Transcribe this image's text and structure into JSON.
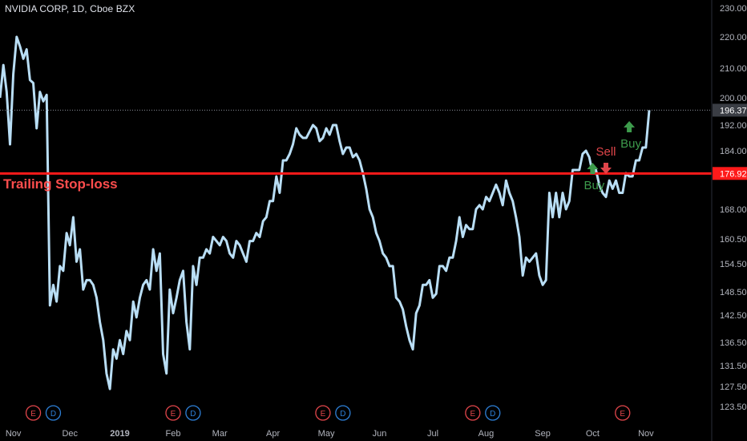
{
  "header": {
    "title": "NVIDIA CORP, 1D, Cboe BZX"
  },
  "colors": {
    "background": "#000000",
    "price_line": "#b9def5",
    "stop_line": "#ff1a1a",
    "stop_label_text": "#ff4d4d",
    "buy": "#3d9b4c",
    "sell": "#e0454a",
    "axis_text": "#b2b5be",
    "event_earnings": "#e0454a",
    "event_dividend": "#2d7fd6"
  },
  "annotations": {
    "stop_loss_label": "Trailing Stop-loss",
    "buy_label": "Buy",
    "sell_label": "Sell"
  },
  "chart_data": {
    "type": "line",
    "title": "NVIDIA CORP, 1D, Cboe BZX",
    "xlabel": "",
    "ylabel": "",
    "ylim": [
      120.5,
      231.5
    ],
    "grid": false,
    "y_ticks": [
      "230.00",
      "220.00",
      "210.00",
      "200.00",
      "192.00",
      "184.00",
      "176.00",
      "168.00",
      "160.50",
      "154.50",
      "148.50",
      "142.50",
      "136.50",
      "131.50",
      "127.50",
      "123.50"
    ],
    "y_tick_values": [
      230,
      220,
      210,
      200,
      192,
      184,
      176,
      168,
      160.5,
      154.5,
      148.5,
      142.5,
      136.5,
      131.5,
      127.5,
      123.5
    ],
    "x_ticks": [
      "Nov",
      "Dec",
      "2019",
      "Feb",
      "Mar",
      "Apr",
      "May",
      "Jun",
      "Jul",
      "Aug",
      "Sep",
      "Oct",
      "Nov"
    ],
    "x_tick_index": [
      4,
      21,
      36,
      52,
      66,
      82,
      98,
      114,
      130,
      146,
      163,
      178,
      194
    ],
    "last_price": 196.37,
    "last_price_label": "196.37",
    "stop_level": 176.92,
    "stop_level_label": "176.92",
    "series": [
      {
        "values": [
          200,
          211,
          202,
          186,
          208,
          220,
          217,
          213,
          216,
          206,
          205,
          191,
          202,
          199,
          201,
          145,
          150,
          146,
          154,
          153,
          162,
          159,
          166,
          155,
          158,
          149,
          151,
          151,
          150,
          147,
          141,
          137,
          130,
          127,
          135,
          133,
          137,
          134,
          139,
          137,
          146,
          142,
          147,
          150,
          151,
          149,
          158,
          153,
          157,
          134,
          130,
          149,
          143,
          147,
          151,
          153,
          141,
          135,
          154,
          150,
          156,
          156,
          158,
          157,
          161,
          160,
          159,
          161,
          160,
          157,
          156,
          160,
          159,
          157,
          155,
          160,
          160,
          162,
          161,
          165,
          166,
          170,
          170,
          176,
          172,
          181,
          181,
          183,
          186,
          191,
          189,
          188,
          188,
          190,
          192,
          191,
          187,
          188,
          191,
          189,
          192,
          192,
          187,
          183,
          185,
          185,
          182,
          183,
          181,
          177,
          173,
          168,
          166,
          162,
          160,
          157,
          156,
          154,
          154,
          147,
          146,
          144,
          140,
          137,
          135,
          143,
          145,
          150,
          150,
          151,
          147,
          148,
          154,
          154,
          153,
          156,
          156,
          160,
          166,
          161,
          164,
          163,
          163,
          168,
          169,
          168,
          171,
          170,
          172,
          174,
          172,
          169,
          175,
          172,
          170,
          166,
          161,
          152,
          156,
          155,
          156,
          157,
          152,
          150,
          151,
          172,
          166,
          172,
          166,
          172,
          168,
          170,
          178,
          178,
          178,
          183,
          184,
          182,
          177,
          178,
          174,
          172,
          171,
          175,
          173,
          175,
          172,
          172,
          177,
          176,
          176,
          181,
          181,
          185,
          185,
          196.37
        ]
      }
    ],
    "signals": [
      {
        "type": "Buy",
        "index": 178,
        "price": 178
      },
      {
        "type": "Sell",
        "index": 182,
        "price": 179
      },
      {
        "type": "Buy",
        "index": 189,
        "price": 191
      }
    ],
    "events": [
      {
        "label": "E",
        "kind": "earnings",
        "index": 10
      },
      {
        "label": "D",
        "kind": "dividend",
        "index": 16
      },
      {
        "label": "E",
        "kind": "earnings",
        "index": 52
      },
      {
        "label": "D",
        "kind": "dividend",
        "index": 58
      },
      {
        "label": "E",
        "kind": "earnings",
        "index": 97
      },
      {
        "label": "D",
        "kind": "dividend",
        "index": 103
      },
      {
        "label": "E",
        "kind": "earnings",
        "index": 142
      },
      {
        "label": "D",
        "kind": "dividend",
        "index": 148
      },
      {
        "label": "E",
        "kind": "earnings",
        "index": 187
      }
    ]
  }
}
